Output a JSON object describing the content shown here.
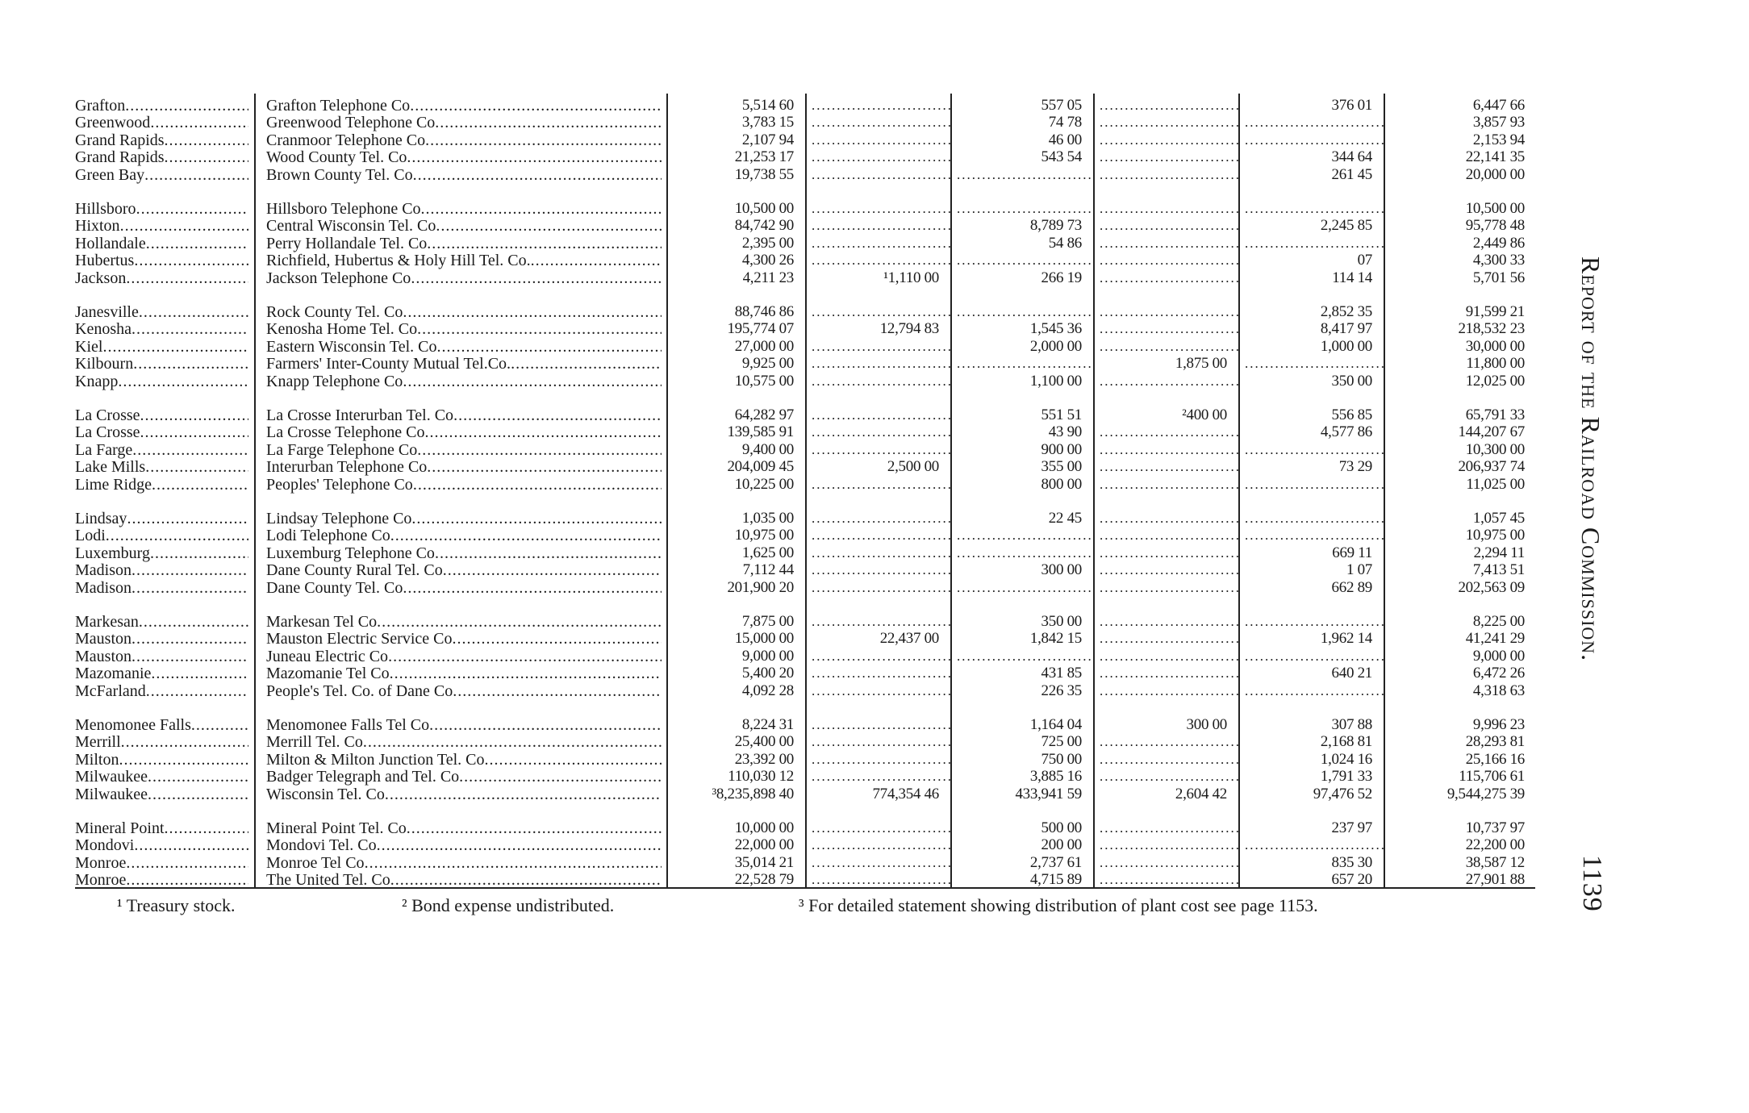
{
  "running_head": "Report of the Railroad Commission.",
  "page_number": "1139",
  "rows": [
    {
      "city": "Grafton",
      "company": "Grafton Telephone Co",
      "values": [
        "5,514 60",
        "",
        "557 05",
        "",
        "376 01",
        "6,447 66"
      ]
    },
    {
      "city": "Greenwood",
      "company": "Greenwood Telephone Co",
      "values": [
        "3,783 15",
        "",
        "74 78",
        "",
        "",
        "3,857 93"
      ]
    },
    {
      "city": "Grand Rapids",
      "company": "Cranmoor Telephone Co",
      "values": [
        "2,107 94",
        "",
        "46 00",
        "",
        "",
        "2,153 94"
      ]
    },
    {
      "city": "Grand Rapids",
      "company": "Wood County Tel. Co",
      "values": [
        "21,253 17",
        "",
        "543 54",
        "",
        "344 64",
        "22,141 35"
      ]
    },
    {
      "city": "Green Bay",
      "company": "Brown County Tel. Co",
      "values": [
        "19,738 55",
        "",
        "",
        "",
        "261 45",
        "20,000 00"
      ]
    },
    {
      "city": "Hillsboro",
      "company": "Hillsboro Telephone Co",
      "values": [
        "10,500 00",
        "",
        "",
        "",
        "",
        "10,500 00"
      ]
    },
    {
      "city": "Hixton",
      "company": "Central Wisconsin Tel. Co",
      "values": [
        "84,742 90",
        "",
        "8,789 73",
        "",
        "2,245 85",
        "95,778 48"
      ]
    },
    {
      "city": "Hollandale",
      "company": "Perry Hollandale Tel. Co",
      "values": [
        "2,395 00",
        "",
        "54 86",
        "",
        "",
        "2,449 86"
      ]
    },
    {
      "city": "Hubertus",
      "company": "Richfield, Hubertus & Holy Hill Tel. Co.",
      "values": [
        "4,300 26",
        "",
        "",
        "",
        "07",
        "4,300 33"
      ]
    },
    {
      "city": "Jackson",
      "company": "Jackson Telephone Co",
      "values": [
        "4,211 23",
        "¹1,110 00",
        "266 19",
        "",
        "114 14",
        "5,701 56"
      ]
    },
    {
      "city": "Janesville",
      "company": "Rock County Tel. Co",
      "values": [
        "88,746 86",
        "",
        "",
        "",
        "2,852 35",
        "91,599 21"
      ]
    },
    {
      "city": "Kenosha",
      "company": "Kenosha Home Tel. Co",
      "values": [
        "195,774 07",
        "12,794 83",
        "1,545 36",
        "",
        "8,417 97",
        "218,532 23"
      ]
    },
    {
      "city": "Kiel",
      "company": "Eastern Wisconsin Tel. Co",
      "values": [
        "27,000 00",
        "",
        "2,000 00",
        "",
        "1,000 00",
        "30,000 00"
      ]
    },
    {
      "city": "Kilbourn",
      "company": "Farmers' Inter-County Mutual Tel.Co.",
      "values": [
        "9,925 00",
        "",
        "",
        "1,875 00",
        "",
        "11,800 00"
      ]
    },
    {
      "city": "Knapp",
      "company": "Knapp Telephone Co",
      "values": [
        "10,575 00",
        "",
        "1,100 00",
        "",
        "350 00",
        "12,025 00"
      ]
    },
    {
      "city": "La Crosse",
      "company": "La Crosse Interurban Tel. Co",
      "values": [
        "64,282 97",
        "",
        "551 51",
        "²400 00",
        "556 85",
        "65,791 33"
      ]
    },
    {
      "city": "La Crosse",
      "company": "La Crosse Telephone Co",
      "values": [
        "139,585 91",
        "",
        "43 90",
        "",
        "4,577 86",
        "144,207 67"
      ]
    },
    {
      "city": "La Farge",
      "company": "La Farge Telephone Co",
      "values": [
        "9,400 00",
        "",
        "900 00",
        "",
        "",
        "10,300 00"
      ]
    },
    {
      "city": "Lake Mills",
      "company": "Interurban Telephone Co",
      "values": [
        "204,009 45",
        "2,500 00",
        "355 00",
        "",
        "73 29",
        "206,937 74"
      ]
    },
    {
      "city": "Lime Ridge",
      "company": "Peoples' Telephone Co",
      "values": [
        "10,225 00",
        "",
        "800 00",
        "",
        "",
        "11,025 00"
      ]
    },
    {
      "city": "Lindsay",
      "company": "Lindsay Telephone Co",
      "values": [
        "1,035 00",
        "",
        "22 45",
        "",
        "",
        "1,057 45"
      ]
    },
    {
      "city": "Lodi",
      "company": "Lodi Telephone Co",
      "values": [
        "10,975 00",
        "",
        "",
        "",
        "",
        "10,975 00"
      ]
    },
    {
      "city": "Luxemburg",
      "company": "Luxemburg Telephone Co",
      "values": [
        "1,625 00",
        "",
        "",
        "",
        "669 11",
        "2,294 11"
      ]
    },
    {
      "city": "Madison",
      "company": "Dane County Rural Tel. Co",
      "values": [
        "7,112 44",
        "",
        "300 00",
        "",
        "1 07",
        "7,413 51"
      ]
    },
    {
      "city": "Madison",
      "company": "Dane County Tel. Co",
      "values": [
        "201,900 20",
        "",
        "",
        "",
        "662 89",
        "202,563 09"
      ]
    },
    {
      "city": "Markesan",
      "company": "Markesan Tel Co",
      "values": [
        "7,875 00",
        "",
        "350 00",
        "",
        "",
        "8,225 00"
      ]
    },
    {
      "city": "Mauston",
      "company": "Mauston Electric Service Co",
      "values": [
        "15,000 00",
        "22,437 00",
        "1,842 15",
        "",
        "1,962 14",
        "41,241 29"
      ]
    },
    {
      "city": "Mauston",
      "company": "Juneau Electric Co",
      "values": [
        "9,000 00",
        "",
        "",
        "",
        "",
        "9,000 00"
      ]
    },
    {
      "city": "Mazomanie",
      "company": "Mazomanie Tel Co",
      "values": [
        "5,400 20",
        "",
        "431 85",
        "",
        "640 21",
        "6,472 26"
      ]
    },
    {
      "city": "McFarland",
      "company": "People's Tel. Co. of Dane Co",
      "values": [
        "4,092 28",
        "",
        "226 35",
        "",
        "",
        "4,318 63"
      ]
    },
    {
      "city": "Menomonee Falls",
      "company": "Menomonee Falls Tel Co",
      "values": [
        "8,224 31",
        "",
        "1,164 04",
        "300 00",
        "307 88",
        "9,996 23"
      ]
    },
    {
      "city": "Merrill",
      "company": "Merrill Tel. Co",
      "values": [
        "25,400 00",
        "",
        "725 00",
        "",
        "2,168 81",
        "28,293 81"
      ]
    },
    {
      "city": "Milton",
      "company": "Milton & Milton Junction Tel. Co",
      "values": [
        "23,392 00",
        "",
        "750 00",
        "",
        "1,024 16",
        "25,166 16"
      ]
    },
    {
      "city": "Milwaukee",
      "company": "Badger Telegraph and Tel. Co",
      "values": [
        "110,030 12",
        "",
        "3,885 16",
        "",
        "1,791 33",
        "115,706 61"
      ]
    },
    {
      "city": "Milwaukee",
      "company": "Wisconsin Tel. Co",
      "values": [
        "³8,235,898 40",
        "774,354 46",
        "433,941 59",
        "2,604 42",
        "97,476 52",
        "9,544,275 39"
      ]
    },
    {
      "city": "Mineral Point",
      "company": "Mineral Point Tel. Co",
      "values": [
        "10,000 00",
        "",
        "500 00",
        "",
        "237 97",
        "10,737 97"
      ]
    },
    {
      "city": "Mondovi",
      "company": "Mondovi Tel. Co",
      "values": [
        "22,000 00",
        "",
        "200 00",
        "",
        "",
        "22,200 00"
      ]
    },
    {
      "city": "Monroe",
      "company": "Monroe Tel Co",
      "values": [
        "35,014 21",
        "",
        "2,737 61",
        "",
        "835 30",
        "38,587 12"
      ]
    },
    {
      "city": "Monroe",
      "company": "The United Tel. Co",
      "values": [
        "22,528 79",
        "",
        "4,715 89",
        "",
        "657 20",
        "27,901 88"
      ]
    }
  ],
  "footnotes": [
    "¹ Treasury stock.",
    "² Bond expense undistributed.",
    "³ For detailed statement showing distribution of plant cost see page 1153."
  ]
}
